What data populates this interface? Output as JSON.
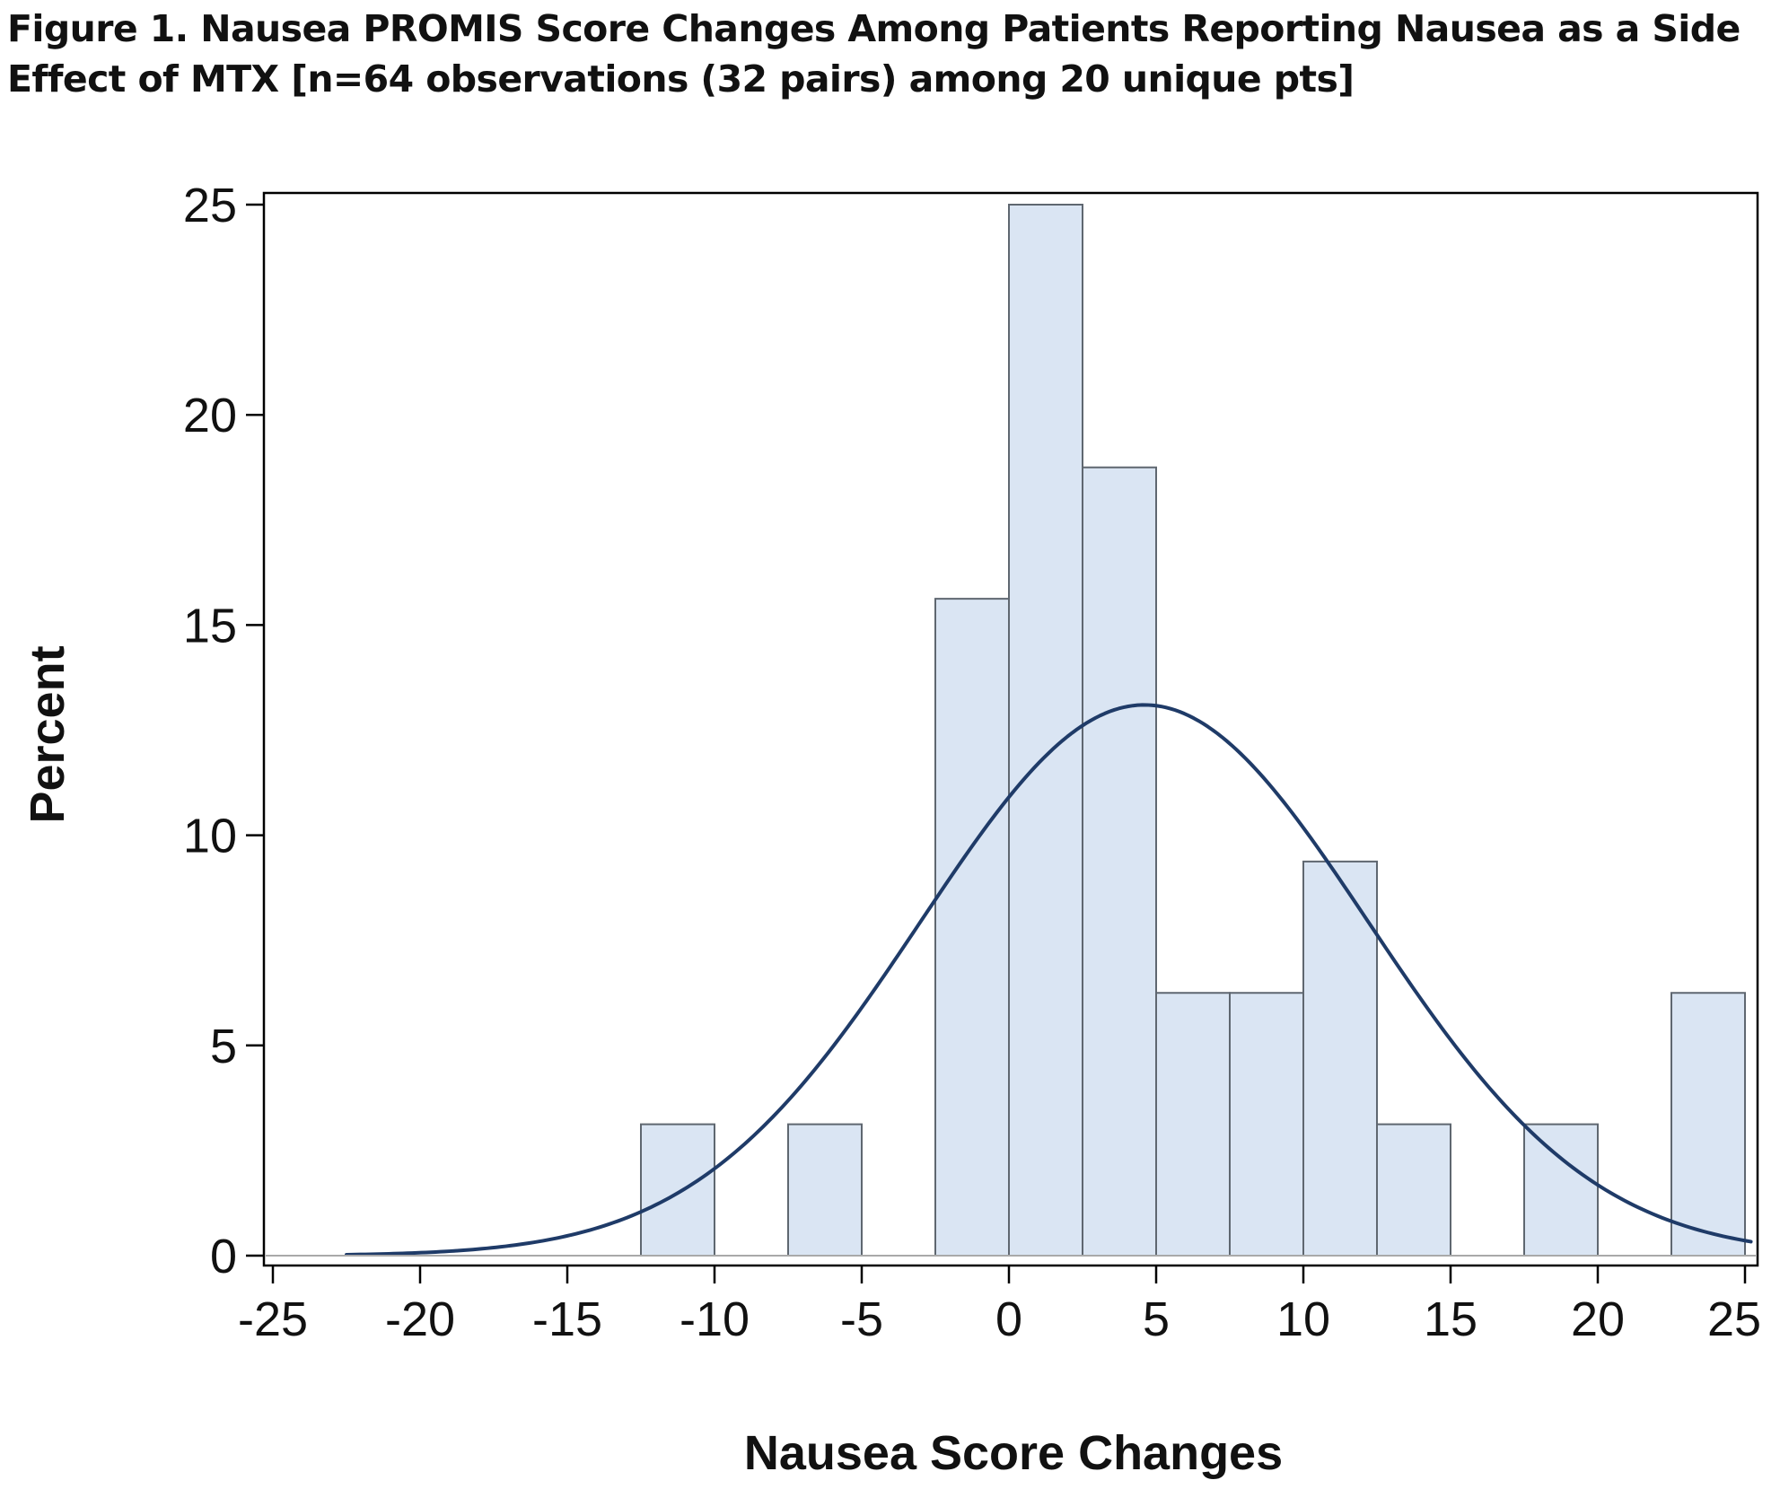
{
  "figure": {
    "title_line1": "Figure 1. Nausea PROMIS Score Changes Among Patients Reporting Nausea as a Side",
    "title_line2": "Effect of MTX [n=64 observations (32 pairs) among 20 unique pts]"
  },
  "chart_data": {
    "type": "bar",
    "subtype": "histogram with fitted normal curve",
    "xlabel": "Nausea Score Changes",
    "ylabel": "Percent",
    "xlim": [
      -25.5,
      25.5
    ],
    "ylim": [
      0,
      25.5
    ],
    "x_ticks": [
      -25,
      -20,
      -15,
      -10,
      -5,
      0,
      5,
      10,
      15,
      20,
      25
    ],
    "y_ticks": [
      0,
      5,
      10,
      15,
      20,
      25
    ],
    "bin_width": 2.5,
    "bins": [
      {
        "center": -11.25,
        "percent": 3.125
      },
      {
        "center": -6.25,
        "percent": 3.125
      },
      {
        "center": -1.25,
        "percent": 15.625
      },
      {
        "center": 1.25,
        "percent": 25.0
      },
      {
        "center": 3.75,
        "percent": 18.75
      },
      {
        "center": 6.25,
        "percent": 6.25
      },
      {
        "center": 8.75,
        "percent": 6.25
      },
      {
        "center": 11.25,
        "percent": 9.375
      },
      {
        "center": 13.75,
        "percent": 3.125
      },
      {
        "center": 18.75,
        "percent": 3.125
      },
      {
        "center": 23.75,
        "percent": 6.25
      }
    ],
    "normal_curve": {
      "mean": 4.6,
      "sd": 7.6,
      "peak_percent": 13.1,
      "x_range": [
        -22.5,
        25.2
      ]
    },
    "grid": false,
    "legend": "none",
    "colors": {
      "bar_fill": "#dae5f3",
      "bar_edge": "#5f6770",
      "curve": "#1f3b68",
      "axis": "#000000"
    }
  }
}
